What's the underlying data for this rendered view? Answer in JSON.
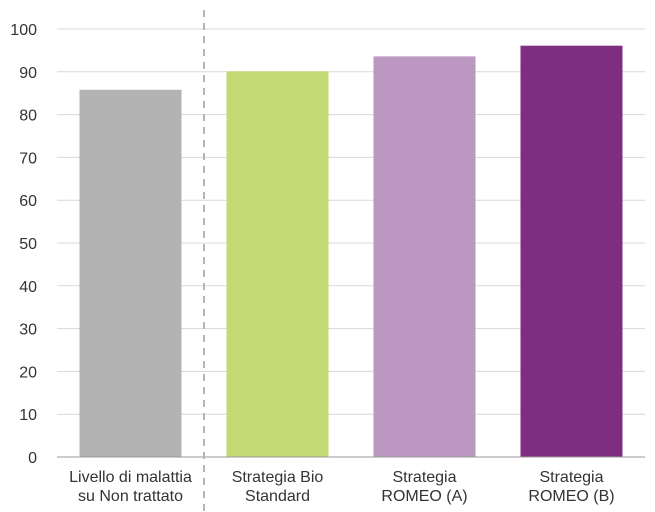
{
  "chart_data": {
    "type": "bar",
    "title": "",
    "xlabel": "",
    "ylabel": "",
    "ylim": [
      0,
      100
    ],
    "yticks": [
      0,
      10,
      20,
      30,
      40,
      50,
      60,
      70,
      80,
      90,
      100
    ],
    "grid": true,
    "legend": "none",
    "separator_after_category": 0,
    "categories": [
      [
        "Livello di malattia",
        "su Non trattato"
      ],
      [
        "Strategia Bio",
        "Standard"
      ],
      [
        "Strategia",
        "ROMEO (A)"
      ],
      [
        "Strategia",
        "ROMEO (B)"
      ]
    ],
    "values": [
      85.8,
      90.1,
      93.6,
      96.1
    ],
    "colors": [
      "#b3b3b3",
      "#c3d974",
      "#bb97c1",
      "#7e2d80"
    ],
    "gridline_color": "#d9d9d9",
    "axis_color": "#999999",
    "separator_color": "#b5b5b5"
  }
}
